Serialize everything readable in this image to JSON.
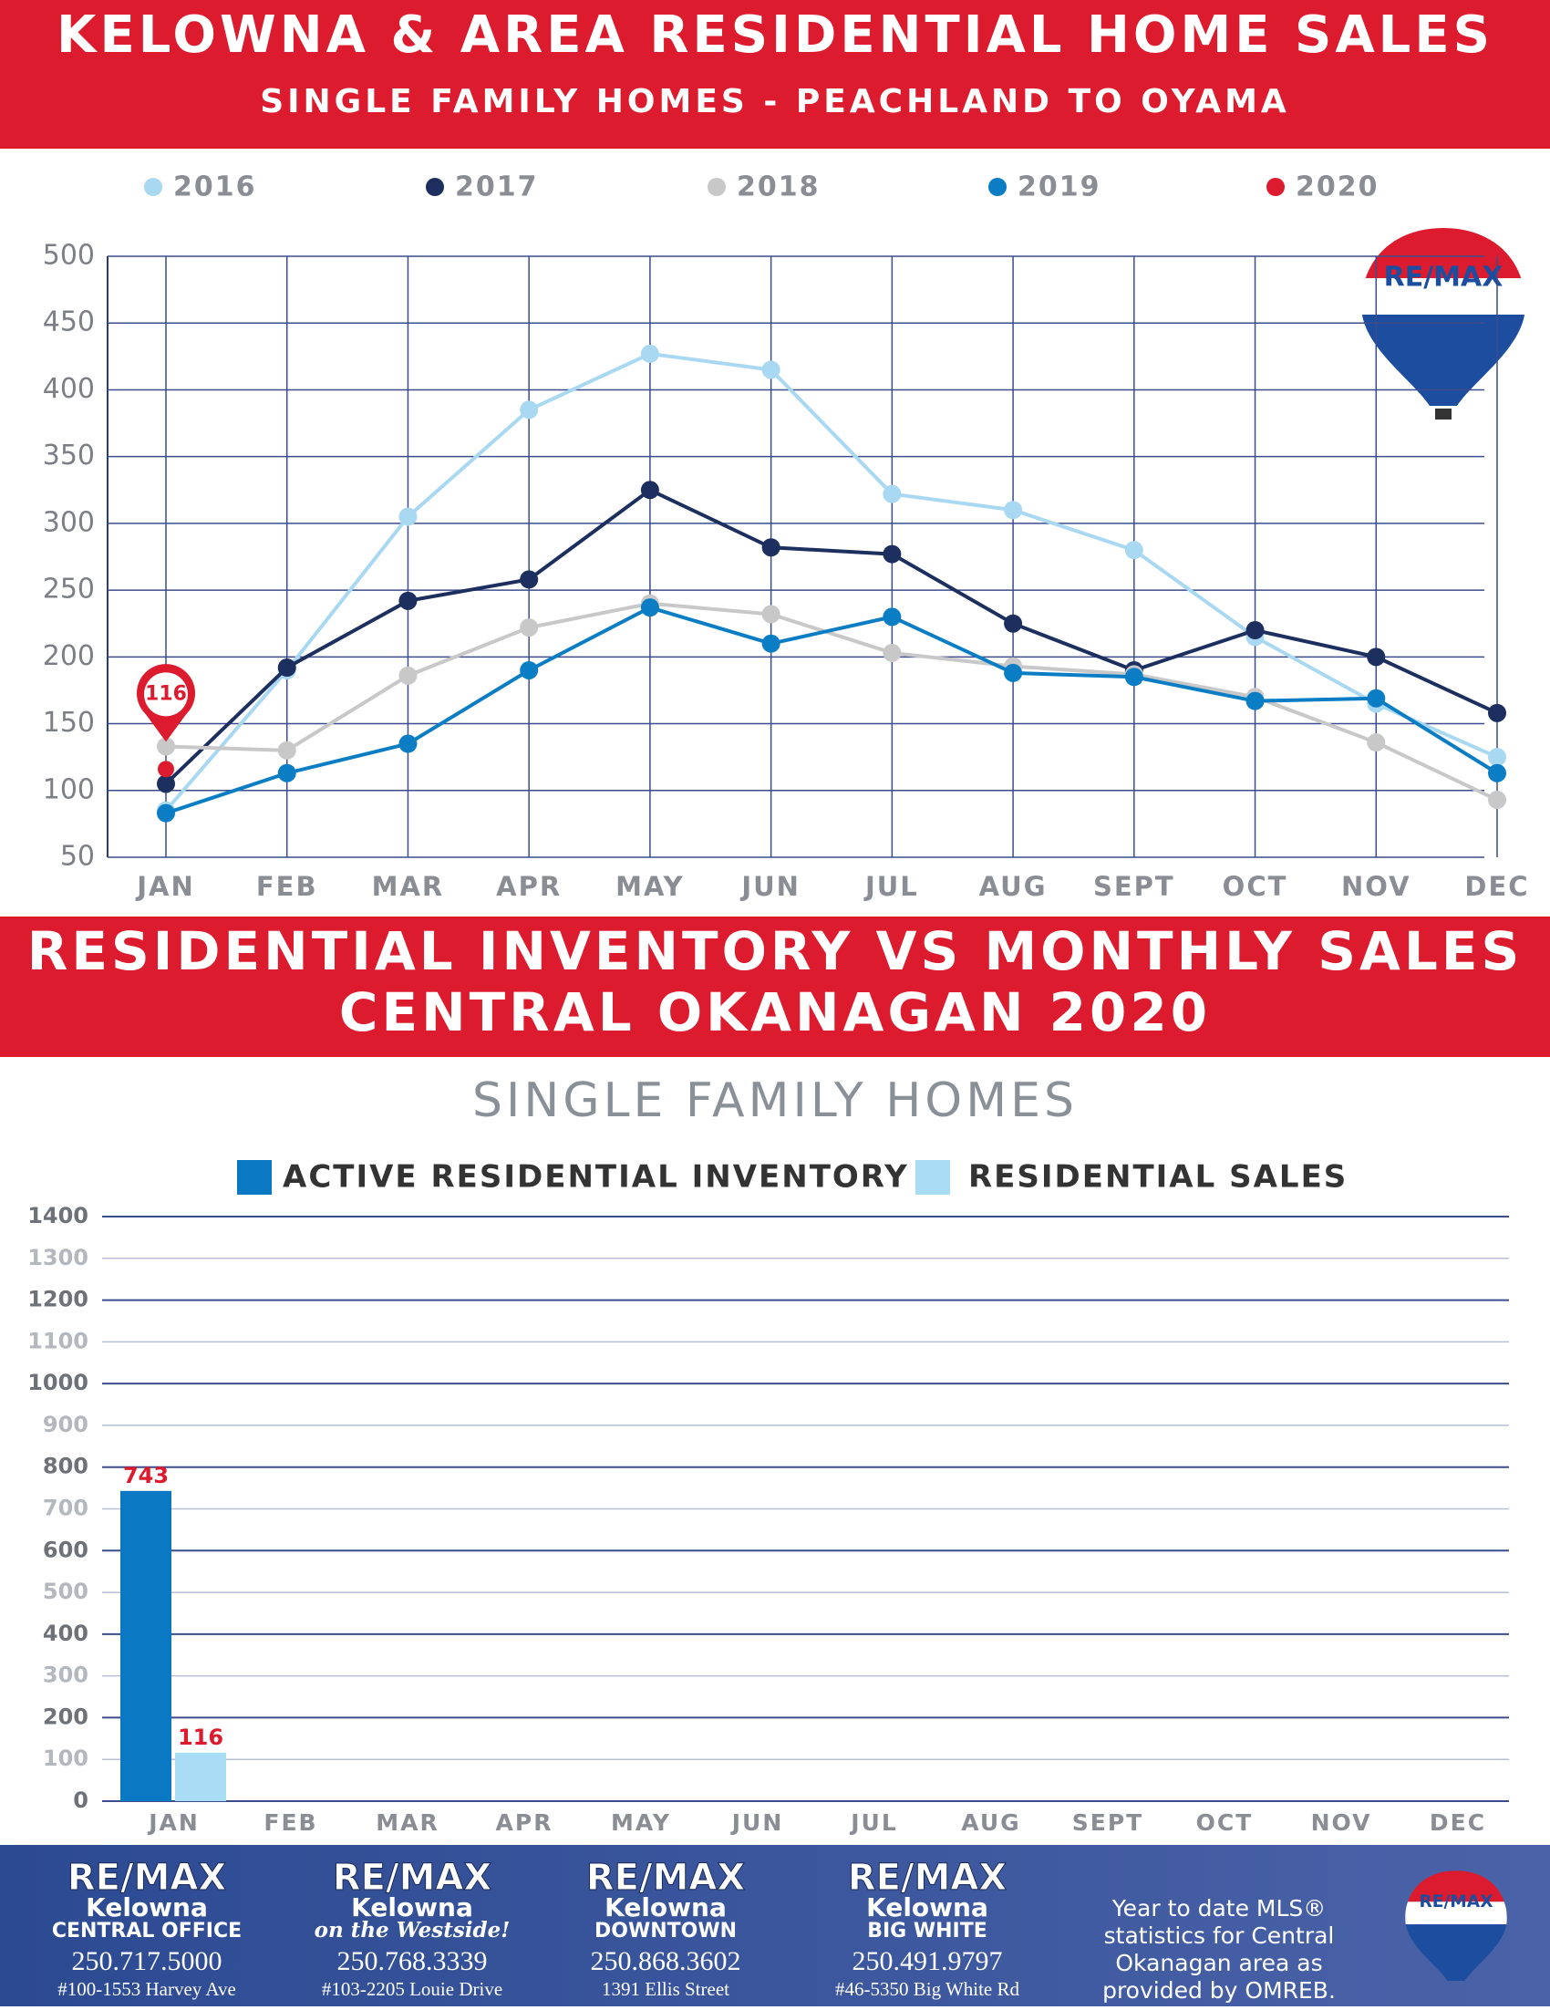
{
  "header": {
    "title": "KELOWNA & AREA RESIDENTIAL HOME SALES",
    "subtitle": "SINGLE FAMILY HOMES - PEACHLAND TO OYAMA"
  },
  "logo": {
    "text": "RE/MAX"
  },
  "chart_data": [
    {
      "type": "line",
      "categories": [
        "JAN",
        "FEB",
        "MAR",
        "APR",
        "MAY",
        "JUN",
        "JUL",
        "AUG",
        "SEPT",
        "OCT",
        "NOV",
        "DEC"
      ],
      "series": [
        {
          "name": "2016",
          "color": "#a8d8f2",
          "values": [
            85,
            190,
            305,
            385,
            427,
            415,
            322,
            310,
            280,
            215,
            165,
            125
          ]
        },
        {
          "name": "2017",
          "color": "#1c2f5e",
          "values": [
            105,
            192,
            242,
            258,
            325,
            282,
            277,
            225,
            190,
            220,
            200,
            158
          ]
        },
        {
          "name": "2018",
          "color": "#c8c8c8",
          "values": [
            133,
            130,
            186,
            222,
            240,
            232,
            203,
            193,
            187,
            170,
            136,
            93
          ]
        },
        {
          "name": "2019",
          "color": "#0b7dc4",
          "values": [
            83,
            113,
            135,
            190,
            237,
            210,
            230,
            188,
            185,
            167,
            169,
            113
          ]
        },
        {
          "name": "2020",
          "color": "#dc1c2e",
          "values": [
            116,
            null,
            null,
            null,
            null,
            null,
            null,
            null,
            null,
            null,
            null,
            null
          ]
        }
      ],
      "ylim": [
        50,
        500
      ],
      "yticks": [
        50,
        100,
        150,
        200,
        250,
        300,
        350,
        400,
        450,
        500
      ],
      "grid": true
    },
    {
      "type": "bar",
      "title": "RESIDENTIAL INVENTORY VS MONTHLY SALES",
      "subtitle": "CENTRAL OKANAGAN 2020",
      "chart_title": "SINGLE FAMILY HOMES",
      "categories": [
        "JAN",
        "FEB",
        "MAR",
        "APR",
        "MAY",
        "JUN",
        "JUL",
        "AUG",
        "SEPT",
        "OCT",
        "NOV",
        "DEC"
      ],
      "series": [
        {
          "name": "ACTIVE RESIDENTIAL INVENTORY",
          "color": "#0a78c2",
          "values": [
            743,
            null,
            null,
            null,
            null,
            null,
            null,
            null,
            null,
            null,
            null,
            null
          ]
        },
        {
          "name": "RESIDENTIAL SALES",
          "color": "#a9dcf5",
          "values": [
            116,
            null,
            null,
            null,
            null,
            null,
            null,
            null,
            null,
            null,
            null,
            null
          ]
        }
      ],
      "ylim": [
        0,
        1400
      ],
      "yticks": [
        0,
        100,
        200,
        300,
        400,
        500,
        600,
        700,
        800,
        900,
        1000,
        1100,
        1200,
        1300,
        1400
      ],
      "grid": true
    }
  ],
  "footer": {
    "offices": [
      {
        "brand": "RE/MAX",
        "name": "Kelowna",
        "sub": "CENTRAL OFFICE",
        "phone": "250.717.5000",
        "address": "#100-1553 Harvey Ave"
      },
      {
        "brand": "RE/MAX",
        "name": "Kelowna",
        "sub": "on the Westside!",
        "phone": "250.768.3339",
        "address": "#103-2205 Louie Drive"
      },
      {
        "brand": "RE/MAX",
        "name": "Kelowna",
        "sub": "DOWNTOWN",
        "phone": "250.868.3602",
        "address": "1391 Ellis Street"
      },
      {
        "brand": "RE/MAX",
        "name": "Kelowna",
        "sub": "BIG WHITE",
        "phone": "250.491.9797",
        "address": "#46-5350 Big White Rd"
      }
    ],
    "note": [
      "Year to date MLS®",
      "statistics for Central",
      "Okanagan area as",
      "provided by OMREB."
    ]
  }
}
